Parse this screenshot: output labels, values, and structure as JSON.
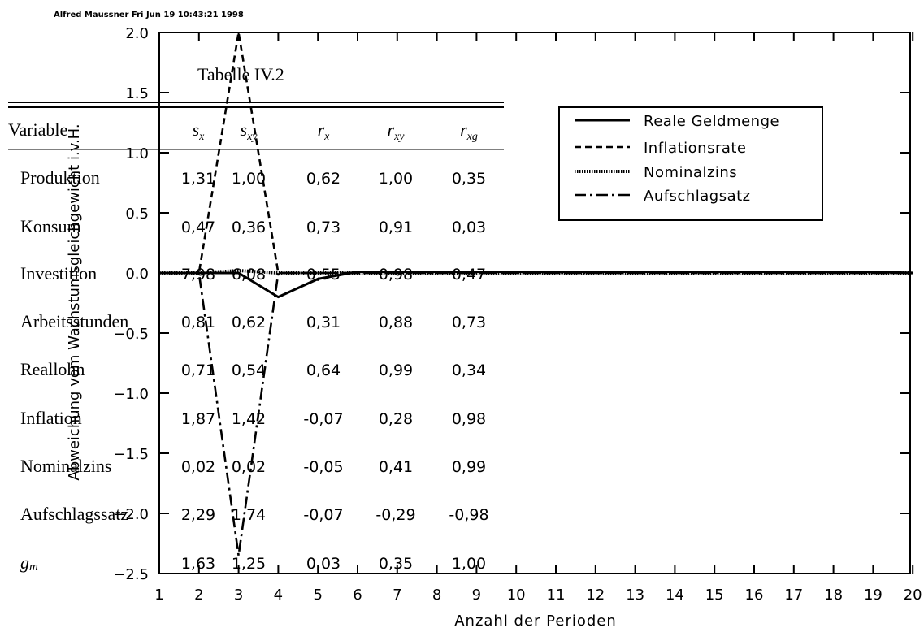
{
  "header_stamp": "Alfred Maussner Fri Jun 19 10:43:21 1998",
  "chart_data": {
    "type": "line",
    "xlabel": "Anzahl der Perioden",
    "ylabel": "Abweichung vom Wachstumsgleichgewicht i.v.H.",
    "xlim": [
      1,
      20
    ],
    "ylim": [
      -2.5,
      2.0
    ],
    "x_ticks": [
      "1",
      "2",
      "3",
      "4",
      "5",
      "6",
      "7",
      "8",
      "9",
      "10",
      "11",
      "12",
      "13",
      "14",
      "15",
      "16",
      "17",
      "18",
      "19",
      "20"
    ],
    "y_ticks": [
      "2.0",
      "1.5",
      "1.0",
      "0.5",
      "0.0",
      "−0.5",
      "−1.0",
      "−1.5",
      "−2.0",
      "−2.5"
    ],
    "legend_position": "top-right",
    "series": [
      {
        "name": "Reale Geldmenge",
        "dash": "solid",
        "x": [
          1,
          2,
          3,
          4,
          5,
          6,
          7,
          8,
          9,
          10,
          11,
          12,
          13,
          14,
          15,
          16,
          17,
          18,
          19,
          20
        ],
        "y": [
          0,
          0,
          0,
          -0.2,
          -0.05,
          0.01,
          0.01,
          0.01,
          0.01,
          0.01,
          0.01,
          0.01,
          0.01,
          0.01,
          0.01,
          0.01,
          0.01,
          0.01,
          0.01,
          0
        ]
      },
      {
        "name": "Inflationsrate",
        "dash": "dash",
        "x": [
          1,
          2,
          3,
          4,
          5,
          6,
          7,
          8,
          9,
          10,
          11,
          12,
          13,
          14,
          15,
          16,
          17,
          18,
          19,
          20
        ],
        "y": [
          0,
          0,
          2.0,
          0,
          0,
          0,
          0,
          0,
          0,
          0,
          0,
          0,
          0,
          0,
          0,
          0,
          0,
          0,
          0,
          0
        ]
      },
      {
        "name": "Nominalzins",
        "dash": "dot",
        "x": [
          1,
          2,
          3,
          4,
          5,
          6,
          7,
          8,
          9,
          10,
          11,
          12,
          13,
          14,
          15,
          16,
          17,
          18,
          19,
          20
        ],
        "y": [
          0,
          0,
          0.02,
          0,
          0,
          0,
          0,
          0,
          0,
          0,
          0,
          0,
          0,
          0,
          0,
          0,
          0,
          0,
          0,
          0
        ]
      },
      {
        "name": "Aufschlagsatz",
        "dash": "dashdot",
        "x": [
          1,
          2,
          3,
          4,
          5,
          6,
          7,
          8,
          9,
          10,
          11,
          12,
          13,
          14,
          15,
          16,
          17,
          18,
          19,
          20
        ],
        "y": [
          0,
          0,
          -2.35,
          0,
          0,
          0,
          0,
          0,
          0,
          0,
          0,
          0,
          0,
          0,
          0,
          0,
          0,
          0,
          0,
          0
        ]
      }
    ]
  },
  "table": {
    "title": "Tabelle IV.2",
    "header_variable": "Variable",
    "columns": [
      {
        "base": "s",
        "sub": "x"
      },
      {
        "base": "s",
        "sub": "xy"
      },
      {
        "base": "r",
        "sub": "x"
      },
      {
        "base": "r",
        "sub": "xy"
      },
      {
        "base": "r",
        "sub": "xg"
      }
    ],
    "rows": [
      {
        "label": "Produktion",
        "values": [
          "1,31",
          "1,00",
          "0,62",
          "1,00",
          "0,35"
        ]
      },
      {
        "label": "Konsum",
        "values": [
          "0,47",
          "0,36",
          "0,73",
          "0,91",
          "0,03"
        ]
      },
      {
        "label": "Investition",
        "values": [
          "7,98",
          "6,08",
          "0,55",
          "0,98",
          "0,47"
        ]
      },
      {
        "label": "Arbeitsstunden",
        "values": [
          "0,81",
          "0,62",
          "0,31",
          "0,88",
          "0,73"
        ]
      },
      {
        "label": "Reallohn",
        "values": [
          "0,71",
          "0,54",
          "0,64",
          "0,99",
          "0,34"
        ]
      },
      {
        "label": "Inflation",
        "values": [
          "1,87",
          "1,42",
          "-0,07",
          "0,28",
          "0,98"
        ]
      },
      {
        "label": "Nominalzins",
        "values": [
          "0,02",
          "0,02",
          "-0,05",
          "0,41",
          "0,99"
        ]
      },
      {
        "label": "Aufschlagssatz",
        "values": [
          "2,29",
          "1,74",
          "-0,07",
          "-0,29",
          "-0,98"
        ]
      },
      {
        "label": "g",
        "label_sub": "m",
        "values": [
          "1,63",
          "1,25",
          "0,03",
          "0,35",
          "1,00"
        ]
      }
    ]
  }
}
